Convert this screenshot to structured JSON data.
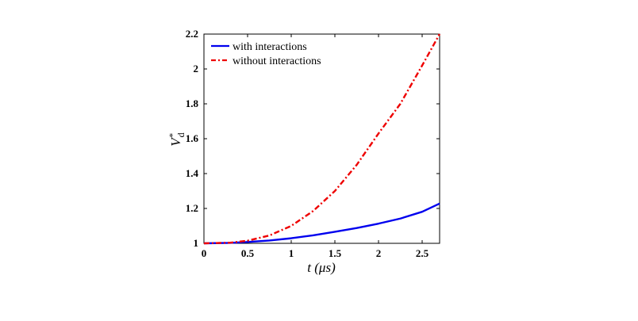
{
  "chart_data": {
    "type": "line",
    "xlabel": "t (μs)",
    "ylabel": "V*d",
    "ylabel_main": "V",
    "ylabel_sup": "*",
    "ylabel_sub": "d",
    "xlim": [
      0,
      2.7
    ],
    "ylim": [
      1,
      2.2
    ],
    "x_ticks": [
      "0",
      "0.5",
      "1",
      "1.5",
      "2",
      "2.5"
    ],
    "y_ticks": [
      "1",
      "1.2",
      "1.4",
      "1.6",
      "1.8",
      "2",
      "2.2"
    ],
    "legend_position": "top-left",
    "grid": false,
    "series": [
      {
        "name": "with interactions",
        "color": "#0000ee",
        "style": "solid",
        "x": [
          0,
          0.3,
          0.5,
          0.75,
          1.0,
          1.25,
          1.5,
          1.75,
          2.0,
          2.25,
          2.5,
          2.7
        ],
        "y": [
          1.0,
          1.0025,
          1.0075,
          1.016,
          1.029,
          1.046,
          1.066,
          1.088,
          1.113,
          1.142,
          1.181,
          1.228
        ]
      },
      {
        "name": "without interactions",
        "color": "#ee0000",
        "style": "dashdot",
        "x": [
          0,
          0.3,
          0.5,
          0.75,
          1.0,
          1.25,
          1.5,
          1.75,
          2.0,
          2.25,
          2.5,
          2.7
        ],
        "y": [
          1.0,
          1.0035,
          1.015,
          1.045,
          1.1,
          1.185,
          1.3,
          1.45,
          1.63,
          1.8,
          2.02,
          2.2
        ]
      }
    ]
  }
}
